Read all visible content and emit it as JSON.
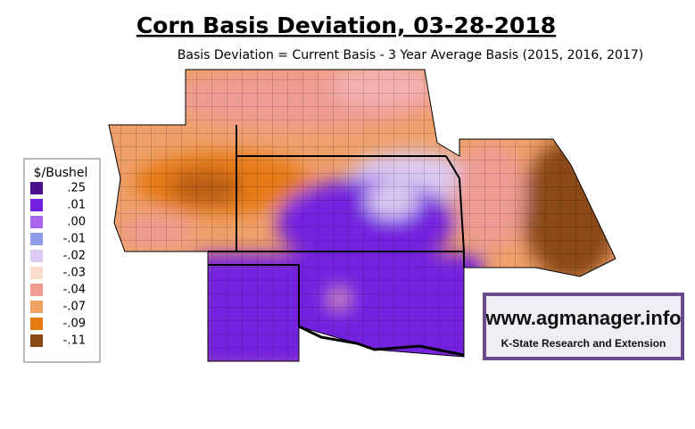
{
  "title": "Corn Basis Deviation, 03-28-2018",
  "subtitle": "Basis Deviation = Current Basis - 3 Year Average Basis (2015, 2016, 2017)",
  "legend": {
    "title": "$/Bushel",
    "items": [
      {
        "label": ".25",
        "color": "#4b118c"
      },
      {
        "label": ".01",
        "color": "#7420e0"
      },
      {
        "label": ".00",
        "color": "#a865ef"
      },
      {
        "label": "-.01",
        "color": "#8f9ce6"
      },
      {
        "label": "-.02",
        "color": "#dccbf2"
      },
      {
        "label": "-.03",
        "color": "#f9dccb"
      },
      {
        "label": "-.04",
        "color": "#ef9c93"
      },
      {
        "label": "-.07",
        "color": "#efa25f"
      },
      {
        "label": "-.09",
        "color": "#e67a12"
      },
      {
        "label": "-.11",
        "color": "#8a4a15"
      }
    ]
  },
  "logo": {
    "url": "www.agmanager.info",
    "org": "K-State Research and Extension"
  }
}
